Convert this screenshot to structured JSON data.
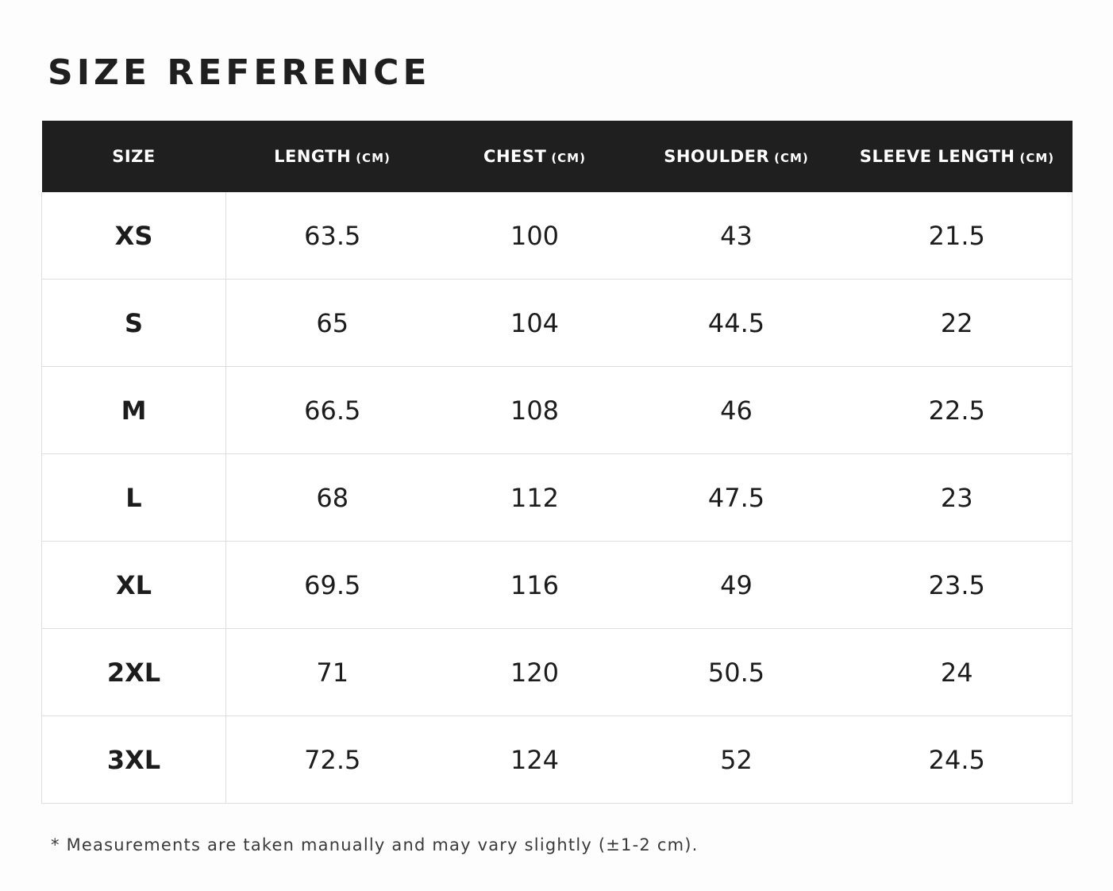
{
  "title": "SIZE REFERENCE",
  "table": {
    "columns": [
      {
        "name": "SIZE"
      },
      {
        "name": "LENGTH",
        "unit": "(CM)"
      },
      {
        "name": "CHEST",
        "unit": "(CM)"
      },
      {
        "name": "SHOULDER",
        "unit": "(CM)"
      },
      {
        "name": "SLEEVE LENGTH",
        "unit": "(CM)"
      }
    ],
    "rows": [
      [
        "XS",
        63.5,
        100,
        43,
        21.5
      ],
      [
        "S",
        65,
        104,
        44.5,
        22
      ],
      [
        "M",
        66.5,
        108,
        46,
        22.5
      ],
      [
        "L",
        68,
        112,
        47.5,
        23
      ],
      [
        "XL",
        69.5,
        116,
        49,
        23.5
      ],
      [
        "2XL",
        71,
        120,
        50.5,
        24
      ],
      [
        "3XL",
        72.5,
        124,
        52,
        24.5
      ]
    ]
  },
  "footnote": "* Measurements are taken manually and may vary slightly (±1-2 cm)."
}
